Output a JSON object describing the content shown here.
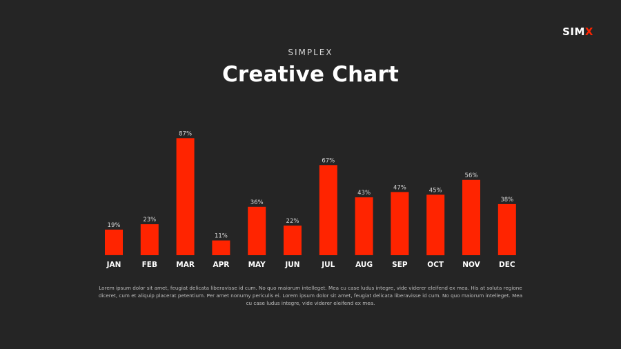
{
  "logo": {
    "prefix": "SIM",
    "accent": "X"
  },
  "header": {
    "subtitle": "SIMPLEX",
    "title": "Creative Chart"
  },
  "chart_data": {
    "type": "bar",
    "categories": [
      "JAN",
      "FEB",
      "MAR",
      "APR",
      "MAY",
      "JUN",
      "JUL",
      "AUG",
      "SEP",
      "OCT",
      "NOV",
      "DEC"
    ],
    "values": [
      19,
      23,
      87,
      11,
      36,
      22,
      67,
      43,
      47,
      45,
      56,
      38
    ],
    "value_labels": [
      "19%",
      "23%",
      "87%",
      "11%",
      "36%",
      "22%",
      "67%",
      "43%",
      "47%",
      "45%",
      "56%",
      "38%"
    ],
    "title": "Creative Chart",
    "xlabel": "",
    "ylabel": "",
    "ylim": [
      0,
      100
    ],
    "grid": false,
    "legend": "none"
  },
  "footer": {
    "text": "Lorem ipsum dolor sit amet, feugiat delicata liberavisse id cum. No quo maiorum intelleget. Mea cu case ludus integre, vide viderer eleifend ex mea. His at soluta regione diceret, cum et aliquip placerat petentium. Per amet nonumy periculis ei. Lorem ipsum dolor sit amet, feugiat delicata liberavisse id cum. No quo maiorum intelleget. Mea cu case ludus integre, vide viderer eleifend ex mea."
  },
  "colors": {
    "background": "#252525",
    "bar": "#ff2400",
    "accent": "#ff2400",
    "text": "#ffffff",
    "muted": "#d8d8d8"
  }
}
